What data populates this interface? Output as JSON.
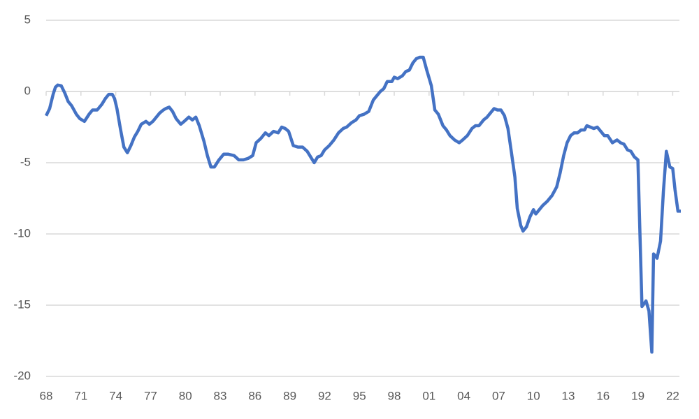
{
  "chart_data": {
    "type": "line",
    "x": [
      1968.0,
      1968.3,
      1968.6,
      1968.8,
      1969.0,
      1969.3,
      1969.6,
      1969.9,
      1970.2,
      1970.6,
      1970.9,
      1971.3,
      1971.7,
      1972.0,
      1972.4,
      1972.8,
      1973.1,
      1973.4,
      1973.7,
      1973.9,
      1974.1,
      1974.4,
      1974.7,
      1975.0,
      1975.3,
      1975.6,
      1975.9,
      1976.2,
      1976.6,
      1976.9,
      1977.2,
      1977.5,
      1977.8,
      1978.1,
      1978.3,
      1978.6,
      1978.9,
      1979.2,
      1979.6,
      1979.9,
      1980.3,
      1980.6,
      1980.9,
      1981.2,
      1981.6,
      1981.9,
      1982.2,
      1982.5,
      1982.9,
      1983.3,
      1983.7,
      1984.2,
      1984.6,
      1985.0,
      1985.4,
      1985.8,
      1986.1,
      1986.5,
      1986.9,
      1987.2,
      1987.6,
      1988.0,
      1988.3,
      1988.6,
      1988.9,
      1989.3,
      1989.7,
      1990.1,
      1990.5,
      1990.8,
      1991.1,
      1991.4,
      1991.7,
      1992.0,
      1992.4,
      1992.8,
      1993.2,
      1993.6,
      1993.9,
      1994.3,
      1994.7,
      1995.0,
      1995.4,
      1995.8,
      1996.2,
      1996.5,
      1996.8,
      1997.1,
      1997.4,
      1997.8,
      1998.0,
      1998.3,
      1998.7,
      1999.0,
      1999.3,
      1999.6,
      1999.9,
      2000.2,
      2000.5,
      2000.8,
      2001.2,
      2001.5,
      2001.8,
      2002.2,
      2002.5,
      2002.8,
      2003.2,
      2003.6,
      2003.9,
      2004.3,
      2004.7,
      2005.0,
      2005.3,
      2005.7,
      2006.0,
      2006.3,
      2006.6,
      2006.9,
      2007.2,
      2007.5,
      2007.8,
      2008.1,
      2008.4,
      2008.6,
      2008.9,
      2009.1,
      2009.4,
      2009.7,
      2010.0,
      2010.2,
      2010.5,
      2010.8,
      2011.2,
      2011.6,
      2012.0,
      2012.3,
      2012.6,
      2012.9,
      2013.2,
      2013.5,
      2013.8,
      2014.1,
      2014.4,
      2014.6,
      2014.9,
      2015.2,
      2015.5,
      2015.8,
      2016.1,
      2016.4,
      2016.8,
      2017.2,
      2017.5,
      2017.8,
      2018.1,
      2018.4,
      2018.7,
      2019.0,
      2019.35,
      2019.7,
      2019.95,
      2020.2,
      2020.35,
      2020.65,
      2020.95,
      2021.2,
      2021.45,
      2021.75,
      2022.0,
      2022.2,
      2022.45,
      2022.7
    ],
    "series": [
      {
        "color": "#4472c4",
        "values": [
          -1.7,
          -1.2,
          -0.2,
          0.3,
          0.45,
          0.4,
          -0.1,
          -0.7,
          -1.0,
          -1.6,
          -1.9,
          -2.1,
          -1.6,
          -1.3,
          -1.3,
          -0.9,
          -0.5,
          -0.2,
          -0.2,
          -0.5,
          -1.2,
          -2.6,
          -3.9,
          -4.3,
          -3.8,
          -3.2,
          -2.8,
          -2.3,
          -2.1,
          -2.3,
          -2.1,
          -1.8,
          -1.5,
          -1.3,
          -1.2,
          -1.1,
          -1.4,
          -1.9,
          -2.3,
          -2.1,
          -1.8,
          -2.0,
          -1.8,
          -2.4,
          -3.5,
          -4.5,
          -5.3,
          -5.3,
          -4.8,
          -4.4,
          -4.4,
          -4.5,
          -4.8,
          -4.8,
          -4.7,
          -4.5,
          -3.6,
          -3.3,
          -2.9,
          -3.1,
          -2.8,
          -2.9,
          -2.5,
          -2.6,
          -2.8,
          -3.8,
          -3.9,
          -3.9,
          -4.2,
          -4.6,
          -5.0,
          -4.6,
          -4.5,
          -4.1,
          -3.8,
          -3.4,
          -2.9,
          -2.6,
          -2.5,
          -2.2,
          -2.0,
          -1.7,
          -1.6,
          -1.4,
          -0.6,
          -0.3,
          0.0,
          0.2,
          0.7,
          0.7,
          1.0,
          0.9,
          1.1,
          1.4,
          1.5,
          2.0,
          2.3,
          2.4,
          2.4,
          1.5,
          0.4,
          -1.3,
          -1.6,
          -2.4,
          -2.7,
          -3.1,
          -3.4,
          -3.6,
          -3.4,
          -3.1,
          -2.6,
          -2.4,
          -2.4,
          -2.0,
          -1.8,
          -1.5,
          -1.2,
          -1.3,
          -1.3,
          -1.7,
          -2.6,
          -4.3,
          -6.0,
          -8.2,
          -9.4,
          -9.8,
          -9.5,
          -8.8,
          -8.3,
          -8.6,
          -8.3,
          -8.0,
          -7.7,
          -7.3,
          -6.7,
          -5.7,
          -4.5,
          -3.6,
          -3.1,
          -2.9,
          -2.9,
          -2.7,
          -2.7,
          -2.4,
          -2.5,
          -2.6,
          -2.5,
          -2.8,
          -3.1,
          -3.1,
          -3.6,
          -3.4,
          -3.6,
          -3.7,
          -4.1,
          -4.2,
          -4.6,
          -4.8,
          -15.1,
          -14.7,
          -15.4,
          -18.3,
          -11.4,
          -11.7,
          -10.5,
          -7.0,
          -4.2,
          -5.3,
          -5.4,
          -6.9,
          -8.4,
          -8.4
        ]
      }
    ],
    "xlim": [
      1968,
      2023
    ],
    "xticks": [
      {
        "value": 1968,
        "label": "68"
      },
      {
        "value": 1971,
        "label": "71"
      },
      {
        "value": 1974,
        "label": "74"
      },
      {
        "value": 1977,
        "label": "77"
      },
      {
        "value": 1980,
        "label": "80"
      },
      {
        "value": 1983,
        "label": "83"
      },
      {
        "value": 1986,
        "label": "86"
      },
      {
        "value": 1989,
        "label": "89"
      },
      {
        "value": 1992,
        "label": "92"
      },
      {
        "value": 1995,
        "label": "95"
      },
      {
        "value": 1998,
        "label": "98"
      },
      {
        "value": 2001,
        "label": "01"
      },
      {
        "value": 2004,
        "label": "04"
      },
      {
        "value": 2007,
        "label": "07"
      },
      {
        "value": 2010,
        "label": "10"
      },
      {
        "value": 2013,
        "label": "13"
      },
      {
        "value": 2016,
        "label": "16"
      },
      {
        "value": 2019,
        "label": "19"
      },
      {
        "value": 2022,
        "label": "22"
      }
    ],
    "ylim": [
      -20,
      5
    ],
    "yticks": [
      -20,
      -15,
      -10,
      -5,
      0,
      5
    ],
    "grid": true
  }
}
